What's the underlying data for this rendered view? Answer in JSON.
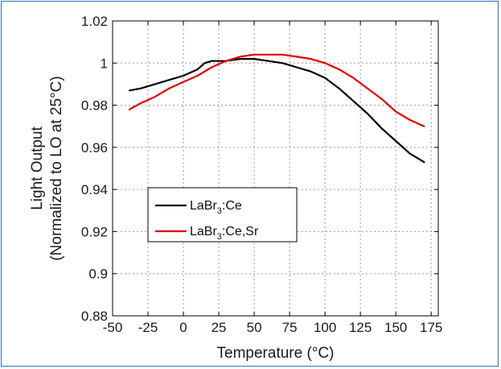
{
  "chart_data": {
    "type": "line",
    "title": "",
    "xlabel": "Temperature (°C)",
    "ylabel_line1": "Light Output",
    "ylabel_line2": "(Normalized to LO at 25°C)",
    "xlim": [
      -50,
      180
    ],
    "ylim": [
      0.88,
      1.02
    ],
    "x_ticks": [
      -50,
      -25,
      0,
      25,
      50,
      75,
      100,
      125,
      150,
      175
    ],
    "x_tick_labels": [
      "-50",
      "-25",
      "0",
      "25",
      "50",
      "75",
      "100",
      "125",
      "150",
      "175"
    ],
    "y_ticks": [
      0.88,
      0.9,
      0.92,
      0.94,
      0.96,
      0.98,
      1.0,
      1.02
    ],
    "y_tick_labels": [
      "0.88",
      "0.9",
      "0.92",
      "0.94",
      "0.96",
      "0.98",
      "1",
      "1.02"
    ],
    "grid": true,
    "legend_position": "lower-left",
    "series": [
      {
        "name": "LaBr",
        "name_sub": "3",
        "name_suffix": ":Ce",
        "color": "#000000",
        "x": [
          -38,
          -30,
          -20,
          -10,
          0,
          10,
          15,
          20,
          25,
          30,
          40,
          50,
          60,
          70,
          80,
          90,
          100,
          110,
          120,
          130,
          140,
          150,
          160,
          170
        ],
        "y": [
          0.987,
          0.988,
          0.99,
          0.992,
          0.994,
          0.997,
          1.0,
          1.001,
          1.001,
          1.001,
          1.002,
          1.002,
          1.001,
          1.0,
          0.998,
          0.996,
          0.993,
          0.988,
          0.982,
          0.976,
          0.969,
          0.963,
          0.957,
          0.953
        ]
      },
      {
        "name": "LaBr",
        "name_sub": "3",
        "name_suffix": ":Ce,Sr",
        "color": "#e00000",
        "x": [
          -38,
          -30,
          -20,
          -10,
          0,
          10,
          20,
          30,
          40,
          50,
          60,
          70,
          80,
          90,
          100,
          110,
          120,
          130,
          140,
          150,
          160,
          170
        ],
        "y": [
          0.978,
          0.981,
          0.984,
          0.988,
          0.991,
          0.994,
          0.998,
          1.001,
          1.003,
          1.004,
          1.004,
          1.004,
          1.003,
          1.002,
          1.0,
          0.997,
          0.993,
          0.988,
          0.983,
          0.977,
          0.973,
          0.97
        ]
      }
    ]
  }
}
